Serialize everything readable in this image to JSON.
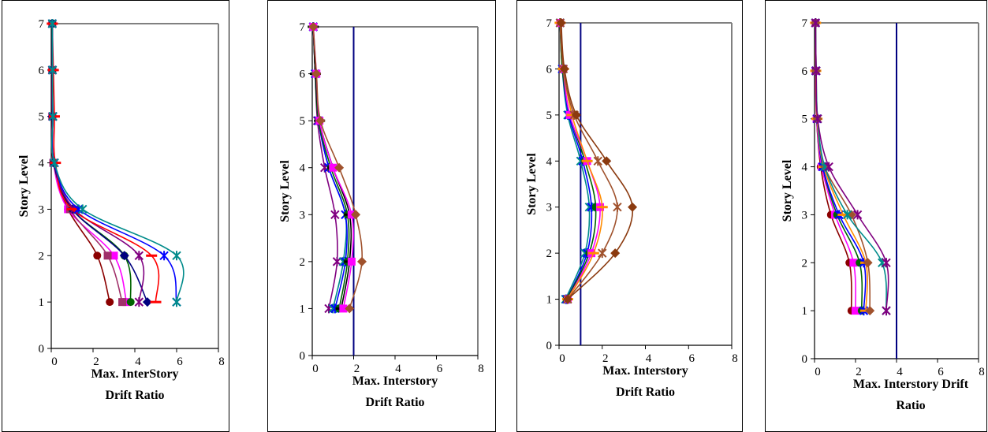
{
  "chart_data": [
    {
      "type": "line",
      "ylabel": "Story Level",
      "xlabel_lines": [
        "Max. InterStory",
        "Drift Ratio"
      ],
      "xlim": [
        0,
        8
      ],
      "ylim": [
        0,
        7
      ],
      "xticks": [
        "0",
        "2",
        "4",
        "6",
        "8"
      ],
      "yticks": [
        "0",
        "1",
        "2",
        "3",
        "4",
        "5",
        "6",
        "7"
      ],
      "limit_line": null,
      "series": [
        {
          "color": "#8b0000",
          "marker": "circle",
          "x": [
            2.8,
            2.2,
            0.8,
            0.1,
            0.05,
            0.05,
            0.05
          ],
          "y": [
            1,
            2,
            3,
            4,
            5,
            6,
            7
          ]
        },
        {
          "color": "#ff00ff",
          "marker": "square",
          "x": [
            3.6,
            3.0,
            0.8,
            0.1,
            0.05,
            0.05,
            0.05
          ],
          "y": [
            1,
            2,
            3,
            4,
            5,
            6,
            7
          ]
        },
        {
          "color": "#a0306a",
          "marker": "square",
          "x": [
            3.4,
            2.7,
            0.9,
            0.1,
            0.05,
            0.05,
            0.05
          ],
          "y": [
            1,
            2,
            3,
            4,
            5,
            6,
            7
          ]
        },
        {
          "color": "#006400",
          "marker": "circle",
          "x": [
            3.8,
            3.5,
            1.0,
            0.12,
            0.06,
            0.05,
            0.05
          ],
          "y": [
            1,
            2,
            3,
            4,
            5,
            6,
            7
          ]
        },
        {
          "color": "#000080",
          "marker": "diamond",
          "x": [
            4.6,
            3.5,
            1.0,
            0.12,
            0.06,
            0.05,
            0.05
          ],
          "y": [
            1,
            2,
            3,
            4,
            5,
            6,
            7
          ]
        },
        {
          "color": "#800080",
          "marker": "star",
          "x": [
            4.2,
            4.2,
            1.1,
            0.15,
            0.07,
            0.05,
            0.05
          ],
          "y": [
            1,
            2,
            3,
            4,
            5,
            6,
            7
          ]
        },
        {
          "color": "#ff0000",
          "marker": "dash",
          "x": [
            5.0,
            4.8,
            1.0,
            0.2,
            0.15,
            0.1,
            0.05
          ],
          "y": [
            1,
            2,
            3,
            4,
            5,
            6,
            7
          ]
        },
        {
          "color": "#0000ff",
          "marker": "star",
          "x": [
            6.0,
            5.4,
            1.3,
            0.15,
            0.08,
            0.06,
            0.05
          ],
          "y": [
            1,
            2,
            3,
            4,
            5,
            6,
            7
          ]
        },
        {
          "color": "#008b8b",
          "marker": "star",
          "x": [
            6.0,
            6.0,
            1.5,
            0.15,
            0.08,
            0.06,
            0.05
          ],
          "y": [
            1,
            2,
            3,
            4,
            5,
            6,
            7
          ]
        }
      ]
    },
    {
      "type": "line",
      "ylabel": "Story Level",
      "xlabel_lines": [
        "Max. Interstory",
        "Drift Ratio"
      ],
      "xlim": [
        0,
        8
      ],
      "ylim": [
        0,
        7
      ],
      "xticks": [
        "0",
        "2",
        "4",
        "6",
        "8"
      ],
      "yticks": [
        "0",
        "1",
        "2",
        "3",
        "4",
        "5",
        "6",
        "7"
      ],
      "limit_line": 2,
      "limit_color": "#000080",
      "series": [
        {
          "color": "#800080",
          "marker": "star",
          "x": [
            0.8,
            1.2,
            1.1,
            0.6,
            0.25,
            0.15,
            0.05
          ],
          "y": [
            1,
            2,
            3,
            4,
            5,
            6,
            7
          ]
        },
        {
          "color": "#008b8b",
          "marker": "star",
          "x": [
            1.0,
            1.5,
            1.6,
            0.8,
            0.3,
            0.15,
            0.05
          ],
          "y": [
            1,
            2,
            3,
            4,
            5,
            6,
            7
          ]
        },
        {
          "color": "#0000ff",
          "marker": "star",
          "x": [
            1.1,
            1.6,
            1.6,
            0.8,
            0.3,
            0.15,
            0.05
          ],
          "y": [
            1,
            2,
            3,
            4,
            5,
            6,
            7
          ]
        },
        {
          "color": "#006400",
          "marker": "circle",
          "x": [
            1.3,
            1.7,
            1.7,
            0.9,
            0.3,
            0.15,
            0.05
          ],
          "y": [
            1,
            2,
            3,
            4,
            5,
            6,
            7
          ]
        },
        {
          "color": "#000000",
          "marker": "dash",
          "x": [
            1.4,
            1.8,
            1.8,
            1.0,
            0.35,
            0.15,
            0.05
          ],
          "y": [
            1,
            2,
            3,
            4,
            5,
            6,
            7
          ]
        },
        {
          "color": "#ff00ff",
          "marker": "square",
          "x": [
            1.5,
            1.9,
            1.9,
            1.0,
            0.35,
            0.2,
            0.05
          ],
          "y": [
            1,
            2,
            3,
            4,
            5,
            6,
            7
          ]
        },
        {
          "color": "#a0522d",
          "marker": "diamond",
          "x": [
            1.8,
            2.4,
            2.1,
            1.3,
            0.4,
            0.2,
            0.05
          ],
          "y": [
            1,
            2,
            3,
            4,
            5,
            6,
            7
          ]
        }
      ]
    },
    {
      "type": "line",
      "ylabel": "Story Level",
      "xlabel_lines": [
        "Max. Interstory",
        "Drift Ratio"
      ],
      "xlim": [
        0,
        8
      ],
      "ylim": [
        0,
        7
      ],
      "xticks": [
        "0",
        "2",
        "4",
        "6",
        "8"
      ],
      "yticks": [
        "0",
        "1",
        "2",
        "3",
        "4",
        "5",
        "6",
        "7"
      ],
      "limit_line": 1,
      "limit_color": "#000080",
      "series": [
        {
          "color": "#008b8b",
          "marker": "star",
          "x": [
            0.3,
            1.2,
            1.4,
            1.0,
            0.4,
            0.15,
            0.05
          ],
          "y": [
            1,
            2,
            3,
            4,
            5,
            6,
            7
          ]
        },
        {
          "color": "#0000ff",
          "marker": "star",
          "x": [
            0.35,
            1.3,
            1.5,
            1.1,
            0.45,
            0.15,
            0.05
          ],
          "y": [
            1,
            2,
            3,
            4,
            5,
            6,
            7
          ]
        },
        {
          "color": "#006400",
          "marker": "circle",
          "x": [
            0.35,
            1.4,
            1.7,
            1.2,
            0.5,
            0.15,
            0.05
          ],
          "y": [
            1,
            2,
            3,
            4,
            5,
            6,
            7
          ]
        },
        {
          "color": "#ff00ff",
          "marker": "square",
          "x": [
            0.4,
            1.5,
            1.9,
            1.3,
            0.5,
            0.2,
            0.05
          ],
          "y": [
            1,
            2,
            3,
            4,
            5,
            6,
            7
          ]
        },
        {
          "color": "#ff8c00",
          "marker": "dash",
          "x": [
            0.4,
            1.6,
            2.0,
            1.3,
            0.6,
            0.2,
            0.05
          ],
          "y": [
            1,
            2,
            3,
            4,
            5,
            6,
            7
          ]
        },
        {
          "color": "#a0522d",
          "marker": "star",
          "x": [
            0.4,
            2.0,
            2.7,
            1.8,
            0.7,
            0.2,
            0.05
          ],
          "y": [
            1,
            2,
            3,
            4,
            5,
            6,
            7
          ]
        },
        {
          "color": "#8b3a0f",
          "marker": "diamond",
          "x": [
            0.4,
            2.6,
            3.4,
            2.2,
            0.8,
            0.25,
            0.1
          ],
          "y": [
            1,
            2,
            3,
            4,
            5,
            6,
            7
          ]
        }
      ]
    },
    {
      "type": "line",
      "ylabel": "Story Level",
      "xlabel_lines": [
        "Max. Interstory Drift",
        "Ratio"
      ],
      "xlim": [
        0,
        8
      ],
      "ylim": [
        0,
        7
      ],
      "xticks": [
        "0",
        "2",
        "4",
        "6",
        "8"
      ],
      "yticks": [
        "0",
        "1",
        "2",
        "3",
        "4",
        "5",
        "6",
        "7"
      ],
      "limit_line": 4,
      "limit_color": "#000080",
      "series": [
        {
          "color": "#8b0000",
          "marker": "circle",
          "x": [
            1.8,
            1.7,
            0.8,
            0.3,
            0.1,
            0.05,
            0.05
          ],
          "y": [
            1,
            2,
            3,
            4,
            5,
            6,
            7
          ]
        },
        {
          "color": "#ff00ff",
          "marker": "square",
          "x": [
            2.0,
            1.9,
            1.0,
            0.35,
            0.1,
            0.05,
            0.05
          ],
          "y": [
            1,
            2,
            3,
            4,
            5,
            6,
            7
          ]
        },
        {
          "color": "#006400",
          "marker": "circle",
          "x": [
            2.3,
            2.2,
            1.1,
            0.4,
            0.12,
            0.06,
            0.05
          ],
          "y": [
            1,
            2,
            3,
            4,
            5,
            6,
            7
          ]
        },
        {
          "color": "#0000ff",
          "marker": "star",
          "x": [
            2.4,
            2.4,
            1.2,
            0.4,
            0.12,
            0.06,
            0.05
          ],
          "y": [
            1,
            2,
            3,
            4,
            5,
            6,
            7
          ]
        },
        {
          "color": "#ff8c00",
          "marker": "dash",
          "x": [
            2.5,
            2.5,
            1.4,
            0.45,
            0.12,
            0.06,
            0.05
          ],
          "y": [
            1,
            2,
            3,
            4,
            5,
            6,
            7
          ]
        },
        {
          "color": "#a0522d",
          "marker": "diamond",
          "x": [
            2.7,
            2.6,
            1.8,
            0.5,
            0.15,
            0.08,
            0.05
          ],
          "y": [
            1,
            2,
            3,
            4,
            5,
            6,
            7
          ]
        },
        {
          "color": "#008b8b",
          "marker": "star",
          "x": [
            3.5,
            3.3,
            1.6,
            0.5,
            0.15,
            0.08,
            0.05
          ],
          "y": [
            1,
            2,
            3,
            4,
            5,
            6,
            7
          ]
        },
        {
          "color": "#800080",
          "marker": "star",
          "x": [
            3.5,
            3.5,
            2.1,
            0.7,
            0.15,
            0.08,
            0.05
          ],
          "y": [
            1,
            2,
            3,
            4,
            5,
            6,
            7
          ]
        }
      ]
    }
  ]
}
